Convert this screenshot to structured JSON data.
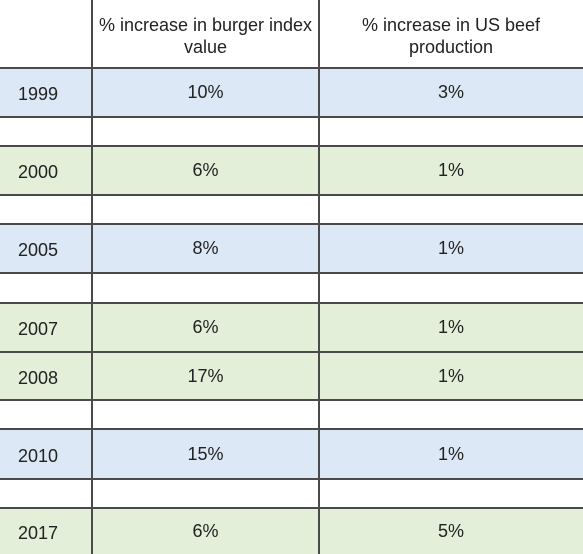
{
  "chart_data": {
    "type": "table",
    "columns": [
      "",
      "% increase in burger index value",
      "% increase in US beef production"
    ],
    "rows": [
      {
        "year": "1999",
        "burger": "10%",
        "beef": "3%",
        "color": "#dce8f5"
      },
      {
        "year": "",
        "burger": "",
        "beef": "",
        "color": "#ffffff"
      },
      {
        "year": "2000",
        "burger": "6%",
        "beef": "1%",
        "color": "#e3efd9"
      },
      {
        "year": "",
        "burger": "",
        "beef": "",
        "color": "#ffffff"
      },
      {
        "year": "2005",
        "burger": "8%",
        "beef": "1%",
        "color": "#dce8f5"
      },
      {
        "year": "",
        "burger": "",
        "beef": "",
        "color": "#ffffff"
      },
      {
        "year": "2007",
        "burger": "6%",
        "beef": "1%",
        "color": "#e3efd9"
      },
      {
        "year": "2008",
        "burger": "17%",
        "beef": "1%",
        "color": "#e3efd9"
      },
      {
        "year": "",
        "burger": "",
        "beef": "",
        "color": "#ffffff"
      },
      {
        "year": "2010",
        "burger": "15%",
        "beef": "1%",
        "color": "#dce8f5"
      },
      {
        "year": "",
        "burger": "",
        "beef": "",
        "color": "#ffffff"
      },
      {
        "year": "2017",
        "burger": "6%",
        "beef": "5%",
        "color": "#e3efd9"
      }
    ]
  }
}
